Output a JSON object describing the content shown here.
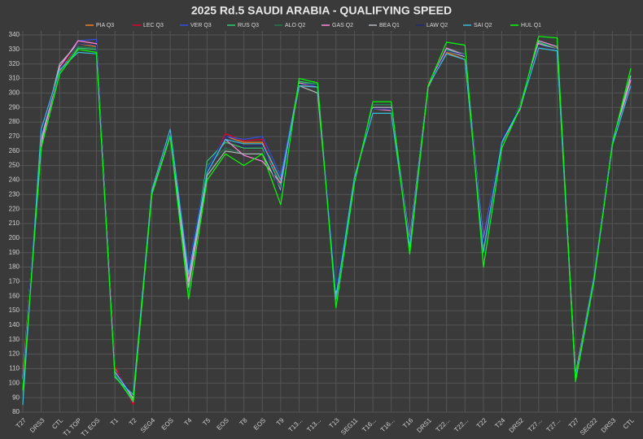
{
  "chart_data": {
    "type": "line",
    "title": "2025 Rd.5 SAUDI ARABIA - QUALIFYING SPEED",
    "categories": [
      "T27",
      "DRS3",
      "CTL",
      "T1 TOP",
      "T1 EOS",
      "T1",
      "T2",
      "SEG4",
      "EOS",
      "T4",
      "T5",
      "EOS",
      "T8",
      "EOS",
      "T9",
      "T13...",
      "T13...",
      "T13",
      "SEG11",
      "T16...",
      "T16...",
      "T16",
      "DRS1",
      "T22...",
      "T22...",
      "T22",
      "T24",
      "DRS2",
      "T27...",
      "T27...",
      "T27",
      "SEG22",
      "DRS3",
      "CTL"
    ],
    "ylim": [
      80,
      340
    ],
    "yticks": [
      80,
      90,
      100,
      110,
      120,
      130,
      140,
      150,
      160,
      170,
      180,
      190,
      200,
      210,
      220,
      230,
      240,
      250,
      260,
      270,
      280,
      290,
      300,
      310,
      320,
      330,
      340
    ],
    "grid": true,
    "legend": "top",
    "series": [
      {
        "name": "PIA Q3",
        "color": "#f58020",
        "values": [
          105,
          265,
          315,
          334,
          332,
          110,
          90,
          230,
          272,
          165,
          245,
          270,
          266,
          266,
          240,
          305,
          305,
          160,
          240,
          290,
          290,
          195,
          305,
          328,
          323,
          195,
          265,
          290,
          333,
          330,
          105,
          172,
          265,
          310
        ]
      },
      {
        "name": "LEC Q3",
        "color": "#e8002d",
        "values": [
          105,
          265,
          316,
          336,
          334,
          112,
          85,
          232,
          273,
          165,
          245,
          272,
          267,
          268,
          235,
          307,
          306,
          162,
          241,
          290,
          290,
          197,
          306,
          330,
          327,
          197,
          266,
          290,
          334,
          331,
          106,
          173,
          266,
          311
        ]
      },
      {
        "name": "VER Q3",
        "color": "#3050e0",
        "values": [
          100,
          270,
          318,
          336,
          337,
          107,
          88,
          232,
          274,
          180,
          248,
          270,
          268,
          270,
          243,
          307,
          305,
          165,
          241,
          290,
          290,
          200,
          305,
          330,
          327,
          200,
          267,
          291,
          335,
          330,
          105,
          174,
          267,
          310
        ]
      },
      {
        "name": "RUS Q3",
        "color": "#2ecc71",
        "values": [
          92,
          265,
          314,
          331,
          330,
          106,
          87,
          232,
          271,
          165,
          253,
          266,
          262,
          262,
          237,
          308,
          306,
          160,
          240,
          292,
          292,
          198,
          305,
          330,
          326,
          195,
          265,
          292,
          335,
          330,
          103,
          171,
          265,
          312
        ]
      },
      {
        "name": "ALO Q2",
        "color": "#1f7a4f",
        "values": [
          92,
          263,
          314,
          332,
          331,
          106,
          88,
          231,
          271,
          163,
          250,
          262,
          258,
          258,
          235,
          307,
          306,
          158,
          240,
          292,
          292,
          195,
          305,
          331,
          327,
          192,
          265,
          291,
          336,
          331,
          104,
          171,
          266,
          313
        ]
      },
      {
        "name": "GAS Q2",
        "color": "#ff87e0",
        "values": [
          103,
          265,
          318,
          336,
          334,
          109,
          89,
          232,
          273,
          170,
          245,
          268,
          257,
          253,
          238,
          307,
          304,
          162,
          241,
          289,
          288,
          199,
          305,
          331,
          326,
          198,
          266,
          289,
          336,
          332,
          105,
          172,
          265,
          309
        ]
      },
      {
        "name": "BEA Q1",
        "color": "#b6babd",
        "values": [
          103,
          268,
          320,
          334,
          333,
          108,
          90,
          232,
          272,
          166,
          243,
          260,
          258,
          258,
          233,
          305,
          300,
          162,
          241,
          290,
          290,
          196,
          304,
          329,
          325,
          196,
          266,
          290,
          334,
          330,
          106,
          173,
          266,
          312
        ]
      },
      {
        "name": "LAW Q2",
        "color": "#1e2a78",
        "values": [
          100,
          272,
          316,
          334,
          333,
          109,
          91,
          233,
          273,
          178,
          246,
          270,
          263,
          264,
          231,
          306,
          305,
          164,
          241,
          289,
          289,
          197,
          305,
          329,
          326,
          196,
          268,
          291,
          333,
          330,
          104,
          173,
          266,
          305
        ]
      },
      {
        "name": "SAI Q2",
        "color": "#37bedd",
        "values": [
          85,
          275,
          316,
          328,
          327,
          104,
          92,
          233,
          275,
          175,
          245,
          268,
          265,
          265,
          240,
          305,
          304,
          158,
          242,
          286,
          286,
          194,
          305,
          327,
          323,
          190,
          266,
          290,
          331,
          329,
          103,
          172,
          264,
          305
        ]
      },
      {
        "name": "HUL Q1",
        "color": "#00ff00",
        "values": [
          95,
          262,
          313,
          330,
          328,
          105,
          88,
          230,
          270,
          158,
          240,
          258,
          250,
          258,
          223,
          310,
          307,
          152,
          238,
          294,
          294,
          189,
          305,
          335,
          333,
          180,
          262,
          290,
          339,
          338,
          101,
          170,
          265,
          317
        ]
      }
    ]
  }
}
